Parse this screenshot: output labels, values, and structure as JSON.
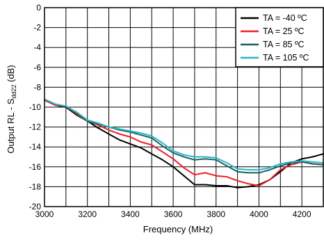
{
  "chart_data": {
    "type": "line",
    "xlabel": "Frequency (MHz)",
    "ylabel_prefix": "Output RL - S",
    "ylabel_sub": "dd22",
    "ylabel_suffix": " (dB)",
    "xlim": [
      3000,
      4300
    ],
    "ylim": [
      -20,
      0
    ],
    "xticks": [
      3000,
      3200,
      3400,
      3600,
      3800,
      4000,
      4200
    ],
    "yticks": [
      0,
      -2,
      -4,
      -6,
      -8,
      -10,
      -12,
      -14,
      -16,
      -18,
      -20
    ],
    "xgrid_step": 100,
    "grid": true,
    "legend_position": "top-right",
    "series": [
      {
        "name": "TA = -40 ºC",
        "color": "#000000",
        "x": [
          3000,
          3050,
          3100,
          3150,
          3200,
          3250,
          3300,
          3350,
          3400,
          3450,
          3500,
          3550,
          3600,
          3650,
          3700,
          3750,
          3800,
          3850,
          3900,
          3950,
          4000,
          4050,
          4100,
          4150,
          4200,
          4250,
          4300
        ],
        "y": [
          -9.3,
          -9.8,
          -10.0,
          -10.8,
          -11.4,
          -12.1,
          -12.7,
          -13.3,
          -13.7,
          -14.1,
          -14.7,
          -15.3,
          -16.0,
          -16.9,
          -17.8,
          -17.8,
          -17.9,
          -17.9,
          -18.1,
          -18.0,
          -17.8,
          -17.3,
          -16.5,
          -15.6,
          -15.2,
          -15.0,
          -14.7
        ]
      },
      {
        "name": "TA = 25 ºC",
        "color": "#ee1c25",
        "x": [
          3000,
          3050,
          3100,
          3150,
          3200,
          3250,
          3300,
          3350,
          3400,
          3450,
          3500,
          3550,
          3600,
          3650,
          3700,
          3750,
          3800,
          3850,
          3900,
          3950,
          4000,
          4050,
          4100,
          4150,
          4200,
          4250,
          4300
        ],
        "y": [
          -9.3,
          -9.8,
          -9.9,
          -10.7,
          -11.4,
          -11.8,
          -12.3,
          -12.7,
          -13.0,
          -13.5,
          -13.8,
          -14.5,
          -15.2,
          -16.1,
          -16.8,
          -16.6,
          -16.9,
          -17.0,
          -17.4,
          -17.7,
          -17.9,
          -17.3,
          -16.3,
          -15.8,
          -15.5,
          -15.7,
          -15.8
        ]
      },
      {
        "name": "TA = 85 ºC",
        "color": "#1d5f60",
        "x": [
          3000,
          3050,
          3100,
          3150,
          3200,
          3250,
          3300,
          3350,
          3400,
          3450,
          3500,
          3550,
          3600,
          3650,
          3700,
          3750,
          3800,
          3850,
          3900,
          3950,
          4000,
          4050,
          4100,
          4150,
          4200,
          4250,
          4300
        ],
        "y": [
          -9.2,
          -9.7,
          -9.9,
          -10.6,
          -11.4,
          -11.7,
          -12.0,
          -12.3,
          -12.5,
          -12.8,
          -13.1,
          -13.9,
          -14.6,
          -15.0,
          -15.3,
          -15.2,
          -15.3,
          -15.9,
          -16.5,
          -16.6,
          -16.6,
          -16.3,
          -15.9,
          -15.6,
          -15.5,
          -15.7,
          -15.8
        ]
      },
      {
        "name": "TA = 105 ºC",
        "color": "#2ab5c9",
        "x": [
          3000,
          3050,
          3100,
          3150,
          3200,
          3250,
          3300,
          3350,
          3400,
          3450,
          3500,
          3550,
          3600,
          3650,
          3700,
          3750,
          3800,
          3850,
          3900,
          3950,
          4000,
          4050,
          4100,
          4150,
          4200,
          4250,
          4300
        ],
        "y": [
          -9.2,
          -9.7,
          -9.9,
          -10.5,
          -11.3,
          -11.6,
          -12.0,
          -12.2,
          -12.4,
          -12.6,
          -12.9,
          -13.6,
          -14.4,
          -14.8,
          -15.0,
          -15.0,
          -15.1,
          -15.6,
          -16.2,
          -16.3,
          -16.3,
          -16.1,
          -15.7,
          -15.5,
          -15.4,
          -15.5,
          -15.6
        ]
      }
    ]
  }
}
